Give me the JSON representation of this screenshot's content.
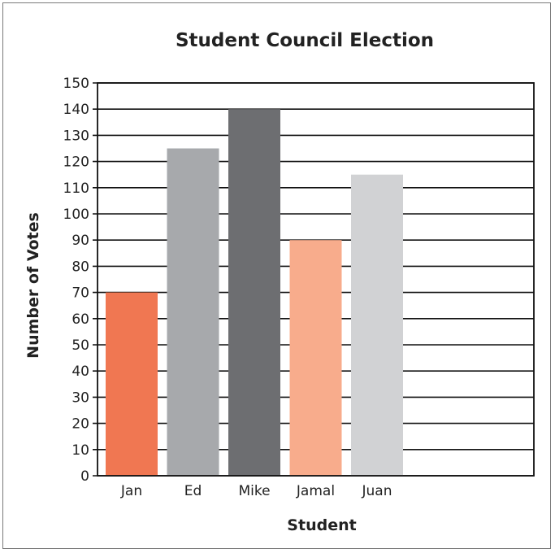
{
  "chart_data": {
    "type": "bar",
    "title": "Student Council Election",
    "xlabel": "Student",
    "ylabel": "Number of Votes",
    "categories": [
      "Jan",
      "Ed",
      "Mike",
      "Jamal",
      "Juan"
    ],
    "values": [
      70,
      125,
      140,
      90,
      115
    ],
    "colors": [
      "#f07752",
      "#a7a9ac",
      "#6d6e71",
      "#f8ac8c",
      "#d1d2d4"
    ],
    "ylim": [
      0,
      150
    ],
    "yticks": [
      0,
      10,
      20,
      30,
      40,
      50,
      60,
      70,
      80,
      90,
      100,
      110,
      120,
      130,
      140,
      150
    ],
    "grid": true,
    "legend": "none"
  }
}
